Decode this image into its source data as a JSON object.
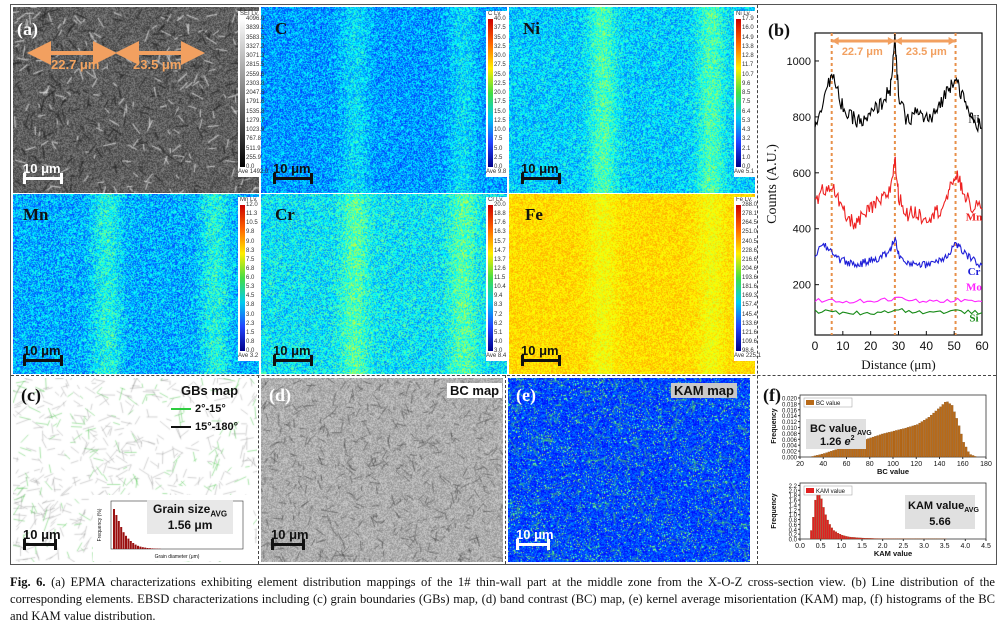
{
  "panels": {
    "a": "(a)",
    "b": "(b)",
    "c": "(c)",
    "d": "(d)",
    "e": "(e)",
    "f": "(f)"
  },
  "maps": {
    "sem": {
      "scalebar": "10 μm",
      "dist1": "22.7 μm",
      "dist2": "23.5 μm",
      "cbar": {
        "title": "SEI Lv.",
        "ticks": [
          "4096.0",
          "3839.1",
          "3583.5",
          "3327.2",
          "3071.3",
          "2815.5",
          "2559.6",
          "2303.8",
          "2047.5",
          "1791.6",
          "1535.8",
          "1279.7",
          "1023.9",
          "767.8",
          "511.9",
          "255.9",
          "0.0"
        ],
        "ave": "Ave 1492.0"
      }
    },
    "c_map": {
      "label": "C",
      "scalebar": "10 μm",
      "cbar": {
        "title": "C Lv.",
        "ticks": [
          "40.0",
          "37.5",
          "35.0",
          "32.5",
          "30.0",
          "27.5",
          "25.0",
          "22.5",
          "20.0",
          "17.5",
          "15.0",
          "12.5",
          "10.0",
          "7.5",
          "5.0",
          "2.5",
          "0.0"
        ],
        "ave": "Ave 9.8"
      }
    },
    "ni": {
      "label": "Ni",
      "scalebar": "10 μm",
      "cbar": {
        "title": "Ni Lv.",
        "ticks": [
          "17.9",
          "16.0",
          "14.9",
          "13.8",
          "12.8",
          "11.7",
          "10.7",
          "9.6",
          "8.5",
          "7.5",
          "6.4",
          "5.3",
          "4.3",
          "3.2",
          "2.1",
          "1.0",
          "0.0"
        ],
        "ave": "Ave 5.1"
      }
    },
    "mn": {
      "label": "Mn",
      "scalebar": "10 μm",
      "cbar": {
        "title": "Mn Lv.",
        "ticks": [
          "12.0",
          "11.3",
          "10.5",
          "9.8",
          "9.0",
          "8.3",
          "7.5",
          "6.8",
          "6.0",
          "5.3",
          "4.5",
          "3.8",
          "3.0",
          "2.3",
          "1.5",
          "0.8",
          "0.0"
        ],
        "ave": "Ave 3.2"
      }
    },
    "cr": {
      "label": "Cr",
      "scalebar": "10 μm",
      "cbar": {
        "title": "Cr Lv.",
        "ticks": [
          "20.0",
          "18.8",
          "17.6",
          "16.3",
          "15.7",
          "14.7",
          "13.7",
          "12.6",
          "11.5",
          "10.4",
          "9.4",
          "8.3",
          "7.2",
          "6.2",
          "5.1",
          "4.0",
          "3.0"
        ],
        "ave": "Ave 8.4"
      }
    },
    "fe": {
      "label": "Fe",
      "scalebar": "10 μm",
      "cbar": {
        "title": "Fe Lv.",
        "ticks": [
          "288.0",
          "278.1",
          "264.5",
          "251.0",
          "240.5",
          "228.6",
          "216.6",
          "204.6",
          "193.6",
          "181.6",
          "169.3",
          "157.4",
          "145.4",
          "133.6",
          "121.6",
          "109.6",
          "98.6"
        ],
        "ave": "Ave 225.1"
      }
    },
    "gbs": {
      "title": "GBs map",
      "legend1": "2°-15°",
      "legend2": "15°-180°",
      "scalebar": "10 μm",
      "inset": {
        "title": "Grain size",
        "sub": "AVG",
        "value": "1.56 μm",
        "ylabel": "Frequency (%)",
        "xlabel": "Grain diameter (μm)"
      }
    },
    "bc": {
      "title": "BC map",
      "scalebar": "10 μm"
    },
    "kam": {
      "title": "KAM map",
      "scalebar": "10 μm"
    }
  },
  "colors": {
    "line_ni": "#000000",
    "line_mn": "#ee2222",
    "line_cr": "#1f1fd8",
    "line_mo": "#ff22ff",
    "line_si": "#168a16",
    "orange": "#f2a060",
    "gb_low": "#2ecc40",
    "bc_bar": "#b86a18",
    "kam_bar": "#e02020"
  },
  "chart_data": [
    {
      "type": "line",
      "panel": "(b)",
      "xlabel": "Distance (μm)",
      "ylabel": "Counts (A.U.)",
      "xlim": [
        0,
        60
      ],
      "ylim": [
        20,
        1100
      ],
      "xticks": [
        "0",
        "10",
        "20",
        "30",
        "40",
        "50",
        "60"
      ],
      "yticks": [
        "200",
        "400",
        "600",
        "800",
        "1000"
      ],
      "annotations": [
        "22.7 μm",
        "23.5 μm"
      ],
      "markers_x": [
        6,
        28.7,
        50.5
      ],
      "series": [
        {
          "name": "Ni",
          "color": "#000000",
          "x": [
            0,
            3,
            6,
            9,
            12,
            15,
            18,
            21,
            24,
            27,
            28.7,
            30,
            33,
            36,
            39,
            42,
            45,
            48,
            50.5,
            53,
            56,
            60
          ],
          "values": [
            760,
            870,
            950,
            860,
            800,
            790,
            780,
            820,
            850,
            900,
            1070,
            880,
            780,
            820,
            800,
            790,
            850,
            900,
            950,
            870,
            800,
            760
          ]
        },
        {
          "name": "Mn",
          "color": "#ee2222",
          "x": [
            0,
            3,
            6,
            9,
            12,
            15,
            18,
            21,
            24,
            27,
            28.7,
            30,
            33,
            36,
            39,
            42,
            45,
            48,
            50.5,
            53,
            56,
            60
          ],
          "values": [
            490,
            540,
            560,
            480,
            430,
            420,
            450,
            480,
            500,
            540,
            650,
            520,
            450,
            460,
            440,
            450,
            470,
            520,
            600,
            540,
            480,
            470
          ]
        },
        {
          "name": "Cr",
          "color": "#1f1fd8",
          "x": [
            0,
            3,
            6,
            9,
            12,
            15,
            18,
            21,
            24,
            27,
            28.7,
            30,
            33,
            36,
            39,
            42,
            45,
            48,
            50.5,
            53,
            56,
            60
          ],
          "values": [
            310,
            340,
            320,
            290,
            280,
            270,
            280,
            290,
            300,
            320,
            370,
            310,
            270,
            280,
            270,
            280,
            290,
            310,
            350,
            320,
            290,
            270
          ]
        },
        {
          "name": "Mo",
          "color": "#ff22ff",
          "x": [
            0,
            10,
            20,
            30,
            40,
            50,
            60
          ],
          "values": [
            145,
            140,
            142,
            150,
            138,
            145,
            140
          ]
        },
        {
          "name": "Si",
          "color": "#168a16",
          "x": [
            0,
            10,
            20,
            30,
            40,
            50,
            60
          ],
          "values": [
            105,
            100,
            98,
            110,
            100,
            105,
            100
          ]
        }
      ]
    },
    {
      "type": "bar",
      "panel": "(f) top",
      "legend": "BC value",
      "ylabel": "Frequency",
      "xlabel": "BC value",
      "xlim": [
        20,
        180
      ],
      "ylim": [
        0,
        0.021
      ],
      "xticks": [
        "20",
        "40",
        "60",
        "80",
        "100",
        "120",
        "140",
        "160",
        "180"
      ],
      "yticks": [
        "0.000",
        "0.002",
        "0.004",
        "0.006",
        "0.008",
        "0.010",
        "0.012",
        "0.014",
        "0.016",
        "0.018",
        "0.020"
      ],
      "x": [
        30,
        40,
        50,
        60,
        70,
        80,
        90,
        100,
        110,
        120,
        130,
        140,
        145,
        150,
        155,
        160,
        165,
        170
      ],
      "values": [
        0.0002,
        0.0012,
        0.0025,
        0.0038,
        0.0052,
        0.0065,
        0.0078,
        0.0088,
        0.0098,
        0.011,
        0.0135,
        0.017,
        0.019,
        0.0175,
        0.012,
        0.005,
        0.001,
        0.0002
      ],
      "annotation": "BC value",
      "annotation_sub": "AVG",
      "annotation_value": "1.26",
      "annotation_unit": "e"
    },
    {
      "type": "bar",
      "panel": "(f) bottom",
      "legend": "KAM value",
      "ylabel": "Frequency",
      "xlabel": "KAM value",
      "xlim": [
        0,
        4.5
      ],
      "ylim": [
        0,
        2.3
      ],
      "xticks": [
        "0.0",
        "0.5",
        "1.0",
        "1.5",
        "2.0",
        "2.5",
        "3.0",
        "3.5",
        "4.0",
        "4.5"
      ],
      "yticks": [
        "0.0",
        "0.2",
        "0.4",
        "0.6",
        "0.8",
        "1.0",
        "1.2",
        "1.4",
        "1.6",
        "1.8",
        "2.0",
        "2.2"
      ],
      "x": [
        0.25,
        0.3,
        0.35,
        0.4,
        0.45,
        0.5,
        0.55,
        0.6,
        0.65,
        0.7,
        0.75,
        0.8,
        0.9,
        1.0,
        1.1,
        1.2,
        1.4,
        1.6,
        1.8,
        2.0,
        2.5,
        3.0,
        3.5
      ],
      "values": [
        0.35,
        0.9,
        1.6,
        2.1,
        1.95,
        1.65,
        1.3,
        1.0,
        0.78,
        0.6,
        0.46,
        0.35,
        0.24,
        0.16,
        0.11,
        0.08,
        0.05,
        0.03,
        0.02,
        0.015,
        0.01,
        0.006,
        0.004
      ],
      "annotation": "KAM value",
      "annotation_sub": "AVG",
      "annotation_value": "5.66"
    }
  ],
  "caption": {
    "label": "Fig. 6.",
    "text": "(a) EPMA characterizations exhibiting element distribution mappings of the 1# thin-wall part at the middle zone from the X-O-Z cross-section view. (b) Line distribution of the corresponding elements. EBSD characterizations including (c) grain boundaries (GBs) map, (d) band contrast (BC) map, (e) kernel average misorientation (KAM) map, (f) histograms of the BC and KAM value distribution."
  }
}
